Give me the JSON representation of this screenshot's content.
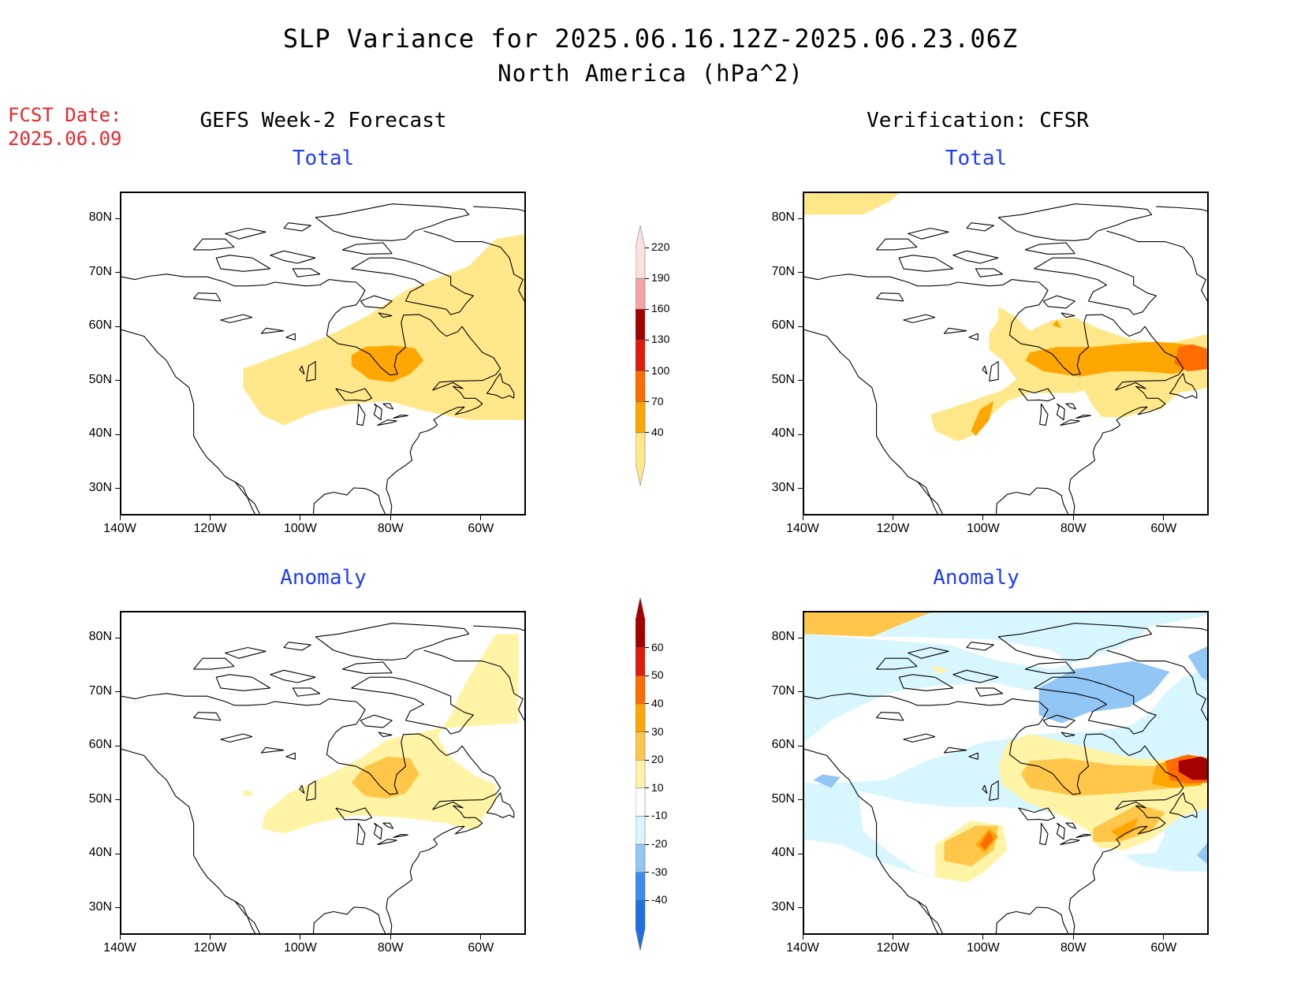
{
  "header": {
    "title": "SLP Variance for 2025.06.16.12Z-2025.06.23.06Z",
    "subtitle": "North America (hPa^2)",
    "fcst_label": "FCST Date:",
    "fcst_date": "2025.06.09",
    "left_column": "GEFS Week-2 Forecast",
    "right_column": "Verification: CFSR"
  },
  "panels": [
    {
      "id": "fcst-total",
      "title": "Total"
    },
    {
      "id": "fcst-anomaly",
      "title": "Anomaly"
    },
    {
      "id": "verif-total",
      "title": "Total"
    },
    {
      "id": "verif-anomaly",
      "title": "Anomaly"
    }
  ],
  "axes": {
    "lon_labels": [
      "140W",
      "120W",
      "100W",
      "80W",
      "60W"
    ],
    "lat_labels": [
      "30N",
      "40N",
      "50N",
      "60N",
      "70N",
      "80N"
    ],
    "lon_range": [
      -140,
      -50
    ],
    "lat_range": [
      25,
      85
    ]
  },
  "total_colorbar": {
    "levels": [
      "40",
      "70",
      "100",
      "130",
      "160",
      "190",
      "220"
    ],
    "colors": [
      "#ffe78a",
      "#ffa602",
      "#ff6c00",
      "#e01b0a",
      "#a50000",
      "#f4a4a6",
      "#fde1df"
    ]
  },
  "anomaly_colorbar": {
    "levels": [
      "-40",
      "-30",
      "-20",
      "-10",
      "10",
      "20",
      "30",
      "40",
      "50",
      "60"
    ],
    "colors": [
      "#1f6fe0",
      "#3a8af0",
      "#92c7f5",
      "#d8f6ff",
      "#ffffff",
      "#fff4a6",
      "#ffc64a",
      "#ffa602",
      "#ff6c00",
      "#e01b0a",
      "#a50000"
    ]
  }
}
